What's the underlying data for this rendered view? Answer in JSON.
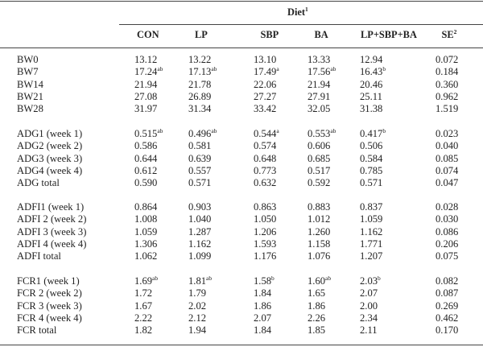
{
  "table": {
    "group_header": "Diet",
    "group_header_sup": "1",
    "columns": [
      {
        "label": "CON",
        "sup": ""
      },
      {
        "label": "LP",
        "sup": ""
      },
      {
        "label": "SBP",
        "sup": ""
      },
      {
        "label": "BA",
        "sup": ""
      },
      {
        "label": "LP+SBP+BA",
        "sup": ""
      },
      {
        "label": "SE",
        "sup": "2"
      }
    ],
    "groups": [
      {
        "rows": [
          {
            "label": "BW0",
            "cells": [
              {
                "v": "13.12"
              },
              {
                "v": "13.22"
              },
              {
                "v": "13.10"
              },
              {
                "v": "13.33"
              },
              {
                "v": "12.94"
              },
              {
                "v": "0.072"
              }
            ]
          },
          {
            "label": "BW7",
            "cells": [
              {
                "v": "17.24",
                "s": "ab"
              },
              {
                "v": "17.13",
                "s": "ab"
              },
              {
                "v": "17.49",
                "s": "a"
              },
              {
                "v": "17.56",
                "s": "ab"
              },
              {
                "v": "16.43",
                "s": "b"
              },
              {
                "v": "0.184"
              }
            ]
          },
          {
            "label": "BW14",
            "cells": [
              {
                "v": "21.94"
              },
              {
                "v": "21.78"
              },
              {
                "v": "22.06"
              },
              {
                "v": "21.94"
              },
              {
                "v": "20.46"
              },
              {
                "v": "0.360"
              }
            ]
          },
          {
            "label": "BW21",
            "cells": [
              {
                "v": "27.08"
              },
              {
                "v": "26.89"
              },
              {
                "v": "27.27"
              },
              {
                "v": "27.91"
              },
              {
                "v": "25.11"
              },
              {
                "v": "0.962"
              }
            ]
          },
          {
            "label": "BW28",
            "cells": [
              {
                "v": "31.97"
              },
              {
                "v": "31.34"
              },
              {
                "v": "33.42"
              },
              {
                "v": "32.05"
              },
              {
                "v": "31.38"
              },
              {
                "v": "1.519"
              }
            ]
          }
        ]
      },
      {
        "rows": [
          {
            "label": "ADG1 (week 1)",
            "cells": [
              {
                "v": "0.515",
                "s": "ab"
              },
              {
                "v": "0.496",
                "s": "ab"
              },
              {
                "v": "0.544",
                "s": "a"
              },
              {
                "v": "0.553",
                "s": "ab"
              },
              {
                "v": "0.417",
                "s": "b"
              },
              {
                "v": "0.023"
              }
            ]
          },
          {
            "label": "ADG2 (week 2)",
            "cells": [
              {
                "v": "0.586"
              },
              {
                "v": "0.581"
              },
              {
                "v": "0.574"
              },
              {
                "v": "0.606"
              },
              {
                "v": "0.506"
              },
              {
                "v": "0.040"
              }
            ]
          },
          {
            "label": "ADG3 (week 3)",
            "cells": [
              {
                "v": "0.644"
              },
              {
                "v": "0.639"
              },
              {
                "v": "0.648"
              },
              {
                "v": "0.685"
              },
              {
                "v": "0.584"
              },
              {
                "v": "0.085"
              }
            ]
          },
          {
            "label": "ADG4 (week 4)",
            "cells": [
              {
                "v": "0.612"
              },
              {
                "v": "0.557"
              },
              {
                "v": "0.773"
              },
              {
                "v": "0.517"
              },
              {
                "v": "0.785"
              },
              {
                "v": "0.074"
              }
            ]
          },
          {
            "label": "ADG total",
            "cells": [
              {
                "v": "0.590"
              },
              {
                "v": "0.571"
              },
              {
                "v": "0.632"
              },
              {
                "v": "0.592"
              },
              {
                "v": "0.571"
              },
              {
                "v": "0.047"
              }
            ]
          }
        ]
      },
      {
        "rows": [
          {
            "label": "ADFI1 (week 1)",
            "cells": [
              {
                "v": "0.864"
              },
              {
                "v": "0.903"
              },
              {
                "v": "0.863"
              },
              {
                "v": "0.883"
              },
              {
                "v": "0.837"
              },
              {
                "v": "0.028"
              }
            ]
          },
          {
            "label": "ADFI 2 (week 2)",
            "cells": [
              {
                "v": "1.008"
              },
              {
                "v": "1.040"
              },
              {
                "v": "1.050"
              },
              {
                "v": "1.012"
              },
              {
                "v": "1.059"
              },
              {
                "v": "0.030"
              }
            ]
          },
          {
            "label": "ADFI 3 (week 3)",
            "cells": [
              {
                "v": "1.059"
              },
              {
                "v": "1.287"
              },
              {
                "v": "1.206"
              },
              {
                "v": "1.260"
              },
              {
                "v": "1.162"
              },
              {
                "v": "0.086"
              }
            ]
          },
          {
            "label": "ADFI 4 (week 4)",
            "cells": [
              {
                "v": "1.306"
              },
              {
                "v": "1.162"
              },
              {
                "v": "1.593"
              },
              {
                "v": "1.158"
              },
              {
                "v": "1.771"
              },
              {
                "v": "0.206"
              }
            ]
          },
          {
            "label": "ADFI total",
            "cells": [
              {
                "v": "1.062"
              },
              {
                "v": "1.099"
              },
              {
                "v": "1.176"
              },
              {
                "v": "1.076"
              },
              {
                "v": "1.207"
              },
              {
                "v": "0.075"
              }
            ]
          }
        ]
      },
      {
        "rows": [
          {
            "label": "FCR1 (week 1)",
            "cells": [
              {
                "v": "1.69",
                "s": "ab"
              },
              {
                "v": "1.81",
                "s": "ab"
              },
              {
                "v": "1.58",
                "s": "b"
              },
              {
                "v": "1.60",
                "s": "ab"
              },
              {
                "v": "2.03",
                "s": "b"
              },
              {
                "v": "0.082"
              }
            ]
          },
          {
            "label": "FCR 2 (week 2)",
            "cells": [
              {
                "v": "1.72"
              },
              {
                "v": "1.79"
              },
              {
                "v": "1.84"
              },
              {
                "v": "1.65"
              },
              {
                "v": "2.07"
              },
              {
                "v": "0.087"
              }
            ]
          },
          {
            "label": "FCR 3 (week 3)",
            "cells": [
              {
                "v": "1.67"
              },
              {
                "v": "2.02"
              },
              {
                "v": "1.86"
              },
              {
                "v": "1.86"
              },
              {
                "v": "2.00"
              },
              {
                "v": "0.269"
              }
            ]
          },
          {
            "label": "FCR 4 (week 4)",
            "cells": [
              {
                "v": "2.22"
              },
              {
                "v": "2.12"
              },
              {
                "v": "2.07"
              },
              {
                "v": "2.26"
              },
              {
                "v": "2.34"
              },
              {
                "v": "0.462"
              }
            ]
          },
          {
            "label": "FCR total",
            "cells": [
              {
                "v": "1.82"
              },
              {
                "v": "1.94"
              },
              {
                "v": "1.84"
              },
              {
                "v": "1.85"
              },
              {
                "v": "2.11"
              },
              {
                "v": "0.170"
              }
            ]
          }
        ]
      }
    ]
  }
}
